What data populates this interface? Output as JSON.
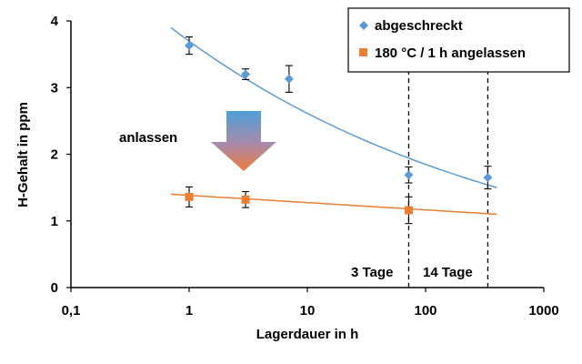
{
  "chart_data": {
    "type": "scatter",
    "xlabel": "Lagerdauer in h",
    "ylabel": "H-Gehalt in ppm",
    "xscale": "log",
    "xlim": [
      0.1,
      1000
    ],
    "ylim": [
      0,
      4
    ],
    "x_tick_labels": [
      "0,1",
      "1",
      "10",
      "100",
      "1000"
    ],
    "y_tick_labels": [
      "0",
      "1",
      "2",
      "3",
      "4"
    ],
    "grid": false,
    "legend_position": "top-right",
    "series": [
      {
        "name": "abgeschreckt",
        "color": "#5b9bd5",
        "marker": "diamond",
        "points": [
          {
            "x": 1,
            "y": 3.63,
            "err": 0.13
          },
          {
            "x": 3,
            "y": 3.2,
            "err": 0.08
          },
          {
            "x": 7,
            "y": 3.13,
            "err": 0.2
          },
          {
            "x": 72,
            "y": 1.69,
            "err": 0.12
          },
          {
            "x": 336,
            "y": 1.65,
            "err": 0.17
          }
        ],
        "trend": {
          "from": [
            0.7,
            3.9
          ],
          "to": [
            400,
            1.5
          ]
        }
      },
      {
        "name": "180 °C / 1 h angelassen",
        "color": "#ed7d31",
        "marker": "square",
        "points": [
          {
            "x": 1,
            "y": 1.36,
            "err": 0.15
          },
          {
            "x": 3,
            "y": 1.32,
            "err": 0.12
          },
          {
            "x": 72,
            "y": 1.16,
            "err": 0.2
          }
        ],
        "trend": {
          "from": [
            0.7,
            1.4
          ],
          "to": [
            400,
            1.1
          ]
        }
      }
    ],
    "vlines": [
      72,
      336
    ],
    "annotations": {
      "arrow_label": "anlassen",
      "tag3": "3 Tage",
      "tag14": "14 Tage"
    }
  }
}
